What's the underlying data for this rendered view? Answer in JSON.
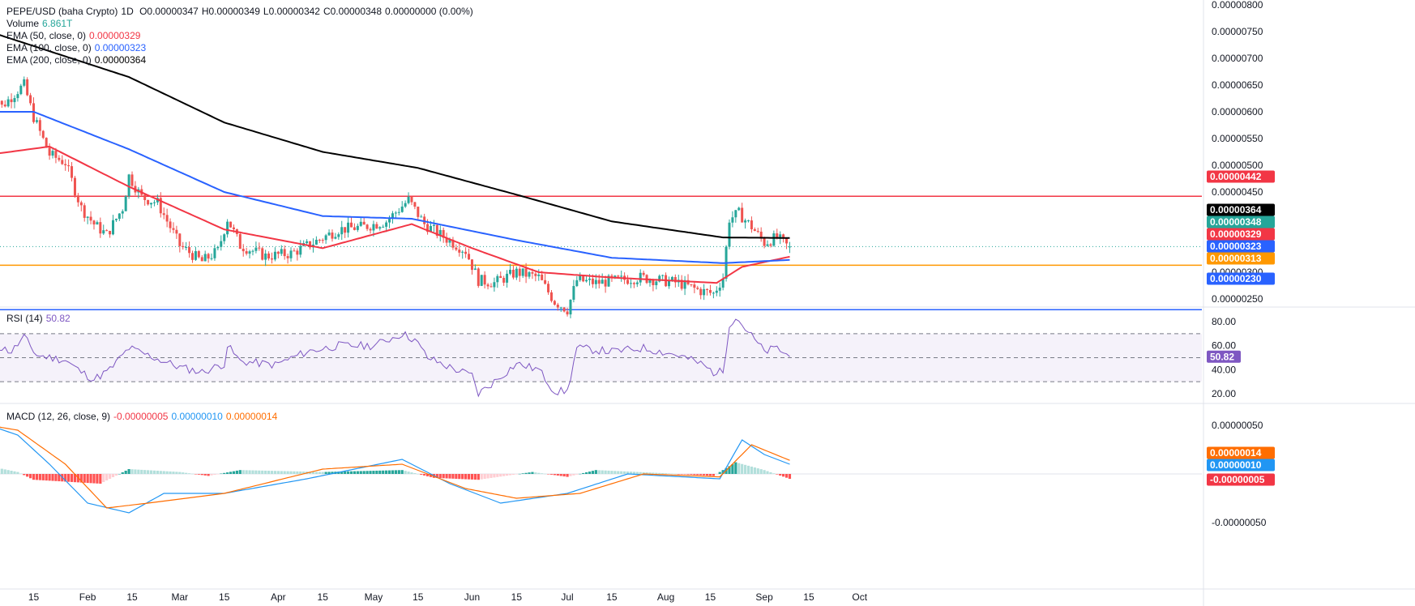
{
  "header": {
    "symbol": "PEPE/USD (baha Crypto)",
    "interval": "1D",
    "open": "O0.00000347",
    "high": "H0.00000349",
    "low": "L0.00000342",
    "close": "C0.00000348",
    "change": "0.00000000 (0.00%)",
    "volume_label": "Volume",
    "volume_value": "6.861T",
    "ema50_label": "EMA (50, close, 0)",
    "ema50_value": "0.00000329",
    "ema100_label": "EMA (100, close, 0)",
    "ema100_value": "0.00000323",
    "ema200_label": "EMA (200, close, 0)",
    "ema200_value": "0.00000364"
  },
  "rsi": {
    "label": "RSI (14)",
    "value": "50.82"
  },
  "macd": {
    "label": "MACD (12, 26, close, 9)",
    "hist_value": "-0.00000005",
    "macd_value": "0.00000010",
    "signal_value": "0.00000014"
  },
  "colors": {
    "up": "#26a69a",
    "down": "#ef5350",
    "ema50": "#f23645",
    "ema100": "#2962ff",
    "ema200": "#000000",
    "resistance": "#f23645",
    "support_orange": "#ff9800",
    "support_blue": "#2962ff",
    "rsi": "#7e57c2",
    "macd": "#2196f3",
    "signal": "#ff6d00"
  },
  "chart_data": [
    {
      "type": "candlestick",
      "pane": "price",
      "x_axis_ticks": [
        "15",
        "Feb",
        "15",
        "Mar",
        "15",
        "Apr",
        "15",
        "May",
        "15",
        "Jun",
        "15",
        "Jul",
        "15",
        "Aug",
        "15",
        "Sep",
        "15",
        "Oct"
      ],
      "y_axis_ticks": [
        "0.00000800",
        "0.00000750",
        "0.00000700",
        "0.00000650",
        "0.00000600",
        "0.00000550",
        "0.00000500",
        "0.00000450",
        "0.00000400",
        "0.00000350",
        "0.00000300",
        "0.00000250",
        "0.00000200"
      ],
      "ylim": [
        1.9e-06,
        8.1e-06
      ],
      "price_key_points": [
        [
          "Jan 1",
          6.6e-06
        ],
        [
          "Jan 5",
          6.1e-06
        ],
        [
          "Jan 10",
          6.4e-06
        ],
        [
          "Jan 12",
          6.5e-06
        ],
        [
          "Jan 15",
          5.9e-06
        ],
        [
          "Jan 20",
          5.2e-06
        ],
        [
          "Jan 25",
          5.05e-06
        ],
        [
          "Jan 30",
          4.2e-06
        ],
        [
          "Feb 3",
          3.9e-06
        ],
        [
          "Feb 7",
          3.7e-06
        ],
        [
          "Feb 12",
          4.2e-06
        ],
        [
          "Feb 14",
          4.8e-06
        ],
        [
          "Feb 18",
          4.4e-06
        ],
        [
          "Feb 23",
          4.3e-06
        ],
        [
          "Mar 1",
          3.5e-06
        ],
        [
          "Mar 8",
          3.2e-06
        ],
        [
          "Mar 13",
          3.4e-06
        ],
        [
          "Mar 16",
          4e-06
        ],
        [
          "Mar 20",
          3.5e-06
        ],
        [
          "Mar 28",
          3.3e-06
        ],
        [
          "Apr 5",
          3.35e-06
        ],
        [
          "Apr 12",
          3.55e-06
        ],
        [
          "Apr 20",
          3.8e-06
        ],
        [
          "Apr 28",
          3.85e-06
        ],
        [
          "May 5",
          3.95e-06
        ],
        [
          "May 12",
          4.35e-06
        ],
        [
          "May 17",
          3.9e-06
        ],
        [
          "May 22",
          3.7e-06
        ],
        [
          "May 30",
          3.4e-06
        ],
        [
          "Jun 3",
          2.85e-06
        ],
        [
          "Jun 8",
          2.8e-06
        ],
        [
          "Jun 15",
          3e-06
        ],
        [
          "Jun 22",
          2.9e-06
        ],
        [
          "Jun 27",
          2.45e-06
        ],
        [
          "Jul 1",
          2.3e-06
        ],
        [
          "Jul 4",
          2.85e-06
        ],
        [
          "Jul 10",
          2.8e-06
        ],
        [
          "Jul 17",
          2.85e-06
        ],
        [
          "Jul 24",
          2.9e-06
        ],
        [
          "Jul 30",
          2.85e-06
        ],
        [
          "Aug 5",
          2.8e-06
        ],
        [
          "Aug 12",
          2.65e-06
        ],
        [
          "Aug 16",
          2.6e-06
        ],
        [
          "Aug 19",
          2.9e-06
        ],
        [
          "Aug 21",
          4e-06
        ],
        [
          "Aug 24",
          4.1e-06
        ],
        [
          "Aug 28",
          3.85e-06
        ],
        [
          "Sep 1",
          3.55e-06
        ],
        [
          "Sep 5",
          3.65e-06
        ],
        [
          "Sep 8",
          3.5e-06
        ],
        [
          "Sep 9",
          3.48e-06
        ]
      ],
      "series": [
        {
          "name": "EMA (50, close, 0)",
          "color": "#f23645",
          "points": [
            [
              "Jan 1",
              5.2e-06
            ],
            [
              "Jan 20",
              5.35e-06
            ],
            [
              "Feb 14",
              4.6e-06
            ],
            [
              "Mar 15",
              3.8e-06
            ],
            [
              "Apr 15",
              3.45e-06
            ],
            [
              "May 13",
              3.9e-06
            ],
            [
              "Jun 1",
              3.45e-06
            ],
            [
              "Jun 22",
              3e-06
            ],
            [
              "Jul 15",
              2.9e-06
            ],
            [
              "Aug 17",
              2.8e-06
            ],
            [
              "Aug 25",
              3.1e-06
            ],
            [
              "Sep 9",
              3.29e-06
            ]
          ]
        },
        {
          "name": "EMA (100, close, 0)",
          "color": "#2962ff",
          "points": [
            [
              "Jan 1",
              6e-06
            ],
            [
              "Jan 15",
              6e-06
            ],
            [
              "Feb 14",
              5.3e-06
            ],
            [
              "Mar 15",
              4.5e-06
            ],
            [
              "Apr 15",
              4.05e-06
            ],
            [
              "May 13",
              4e-06
            ],
            [
              "Jun 15",
              3.6e-06
            ],
            [
              "Jul 15",
              3.27e-06
            ],
            [
              "Aug 19",
              3.17e-06
            ],
            [
              "Sep 9",
              3.23e-06
            ]
          ]
        },
        {
          "name": "EMA (200, close, 0)",
          "color": "#000000",
          "points": [
            [
              "Jan 1",
              7.5e-06
            ],
            [
              "Feb 14",
              6.65e-06
            ],
            [
              "Mar 15",
              5.8e-06
            ],
            [
              "Apr 15",
              5.25e-06
            ],
            [
              "May 15",
              4.95e-06
            ],
            [
              "Jun 15",
              4.45e-06
            ],
            [
              "Jul 15",
              3.95e-06
            ],
            [
              "Aug 19",
              3.65e-06
            ],
            [
              "Sep 9",
              3.64e-06
            ]
          ]
        }
      ],
      "horizontal_lines": [
        {
          "value": 4.42e-06,
          "label": "0.00000442",
          "color": "#f23645"
        },
        {
          "value": 3.13e-06,
          "label": "0.00000313",
          "color": "#ff9800"
        },
        {
          "value": 2.3e-06,
          "label": "0.00000230",
          "color": "#2962ff"
        }
      ],
      "price_tags": [
        {
          "value": 4.42e-06,
          "label": "0.00000442",
          "color": "#f23645"
        },
        {
          "value": 3.64e-06,
          "label": "0.00000364",
          "color": "#000000"
        },
        {
          "value": 3.48e-06,
          "label": "0.00000348",
          "color": "#26a69a"
        },
        {
          "value": 3.29e-06,
          "label": "0.00000329",
          "color": "#f23645"
        },
        {
          "value": 3.23e-06,
          "label": "0.00000323",
          "color": "#2962ff"
        },
        {
          "value": 3.13e-06,
          "label": "0.00000313",
          "color": "#ff9800"
        },
        {
          "value": 2.3e-06,
          "label": "0.00000230",
          "color": "#2962ff"
        }
      ],
      "grid": false
    },
    {
      "type": "line",
      "pane": "rsi",
      "y_axis_ticks": [
        "80.00",
        "60.00",
        "40.00",
        "20.00"
      ],
      "ylim": [
        17,
        86
      ],
      "band": [
        30,
        70
      ],
      "midline": 50,
      "series": [
        {
          "name": "RSI (14)",
          "color": "#7e57c2",
          "points": [
            [
              "Jan 1",
              62
            ],
            [
              "Jan 8",
              55
            ],
            [
              "Jan 12",
              67
            ],
            [
              "Jan 16",
              52
            ],
            [
              "Jan 25",
              48
            ],
            [
              "Jan 30",
              38
            ],
            [
              "Feb 3",
              32
            ],
            [
              "Feb 8",
              40
            ],
            [
              "Feb 14",
              58
            ],
            [
              "Feb 20",
              52
            ],
            [
              "Mar 1",
              42
            ],
            [
              "Mar 8",
              38
            ],
            [
              "Mar 15",
              45
            ],
            [
              "Mar 16",
              60
            ],
            [
              "Mar 20",
              47
            ],
            [
              "Mar 31",
              44
            ],
            [
              "Apr 10",
              55
            ],
            [
              "Apr 20",
              60
            ],
            [
              "May 1",
              60
            ],
            [
              "May 10",
              70
            ],
            [
              "May 14",
              65
            ],
            [
              "May 18",
              50
            ],
            [
              "May 25",
              42
            ],
            [
              "Jun 1",
              35
            ],
            [
              "Jun 3",
              20
            ],
            [
              "Jun 8",
              30
            ],
            [
              "Jun 15",
              45
            ],
            [
              "Jun 22",
              40
            ],
            [
              "Jun 27",
              22
            ],
            [
              "Jul 1",
              22
            ],
            [
              "Jul 4",
              58
            ],
            [
              "Jul 15",
              55
            ],
            [
              "Jul 25",
              58
            ],
            [
              "Aug 5",
              52
            ],
            [
              "Aug 12",
              45
            ],
            [
              "Aug 16",
              38
            ],
            [
              "Aug 19",
              38
            ],
            [
              "Aug 21",
              78
            ],
            [
              "Aug 23",
              84
            ],
            [
              "Aug 28",
              68
            ],
            [
              "Sep 1",
              55
            ],
            [
              "Sep 5",
              58
            ],
            [
              "Sep 9",
              50.82
            ]
          ]
        }
      ],
      "value_tag": "50.82"
    },
    {
      "type": "bar+line",
      "pane": "macd",
      "y_axis_ticks": [
        "0.00000050",
        "-0.00000050"
      ],
      "ylim": [
        -6e-07,
        6.5e-07
      ],
      "histogram_key_points": [
        [
          "Jan 1",
          8e-08
        ],
        [
          "Jan 10",
          2e-08
        ],
        [
          "Jan 15",
          -6e-08
        ],
        [
          "Feb 5",
          -1e-07
        ],
        [
          "Feb 14",
          5e-08
        ],
        [
          "Mar 1",
          2e-08
        ],
        [
          "Mar 10",
          -2e-08
        ],
        [
          "Mar 20",
          4e-08
        ],
        [
          "Apr 15",
          2e-08
        ],
        [
          "May 10",
          4e-08
        ],
        [
          "May 20",
          -4e-08
        ],
        [
          "Jun 3",
          -6e-08
        ],
        [
          "Jun 20",
          2e-08
        ],
        [
          "Jul 1",
          -3e-08
        ],
        [
          "Jul 10",
          4e-08
        ],
        [
          "Jul 30",
          1e-08
        ],
        [
          "Aug 16",
          -2e-08
        ],
        [
          "Aug 23",
          1.2e-07
        ],
        [
          "Sep 1",
          4e-08
        ],
        [
          "Sep 9",
          -5e-08
        ]
      ],
      "series": [
        {
          "name": "MACD",
          "color": "#2196f3",
          "points": [
            [
              "Jan 1",
              5e-07
            ],
            [
              "Jan 10",
              4e-07
            ],
            [
              "Jan 20",
              1e-07
            ],
            [
              "Feb 1",
              -3e-07
            ],
            [
              "Feb 14",
              -4e-07
            ],
            [
              "Feb 25",
              -2e-07
            ],
            [
              "Mar 15",
              -2e-07
            ],
            [
              "Apr 10",
              -5e-08
            ],
            [
              "May 10",
              1.5e-07
            ],
            [
              "May 25",
              -1e-07
            ],
            [
              "Jun 10",
              -3e-07
            ],
            [
              "Jul 1",
              -2e-07
            ],
            [
              "Jul 20",
              0.0
            ],
            [
              "Aug 18",
              -5e-08
            ],
            [
              "Aug 25",
              3.5e-07
            ],
            [
              "Sep 1",
              2e-07
            ],
            [
              "Sep 9",
              1e-07
            ]
          ]
        },
        {
          "name": "Signal",
          "color": "#ff6d00",
          "points": [
            [
              "Jan 1",
              5e-07
            ],
            [
              "Jan 10",
              4.5e-07
            ],
            [
              "Jan 25",
              1e-07
            ],
            [
              "Feb 7",
              -3.5e-07
            ],
            [
              "Feb 20",
              -3e-07
            ],
            [
              "Mar 15",
              -2e-07
            ],
            [
              "Apr 15",
              5e-08
            ],
            [
              "May 10",
              1e-07
            ],
            [
              "May 30",
              -1.5e-07
            ],
            [
              "Jun 15",
              -2.5e-07
            ],
            [
              "Jul 5",
              -2e-07
            ],
            [
              "Jul 25",
              0.0
            ],
            [
              "Aug 18",
              -3e-08
            ],
            [
              "Aug 28",
              3e-07
            ],
            [
              "Sep 9",
              1.4e-07
            ]
          ]
        }
      ],
      "value_tags": [
        {
          "label": "0.00000014",
          "color": "#ff6d00",
          "value": 1.4e-07
        },
        {
          "label": "0.00000010",
          "color": "#2196f3",
          "value": 1e-07
        },
        {
          "label": "-0.00000005",
          "color": "#f23645",
          "value": -5e-08
        }
      ]
    }
  ]
}
